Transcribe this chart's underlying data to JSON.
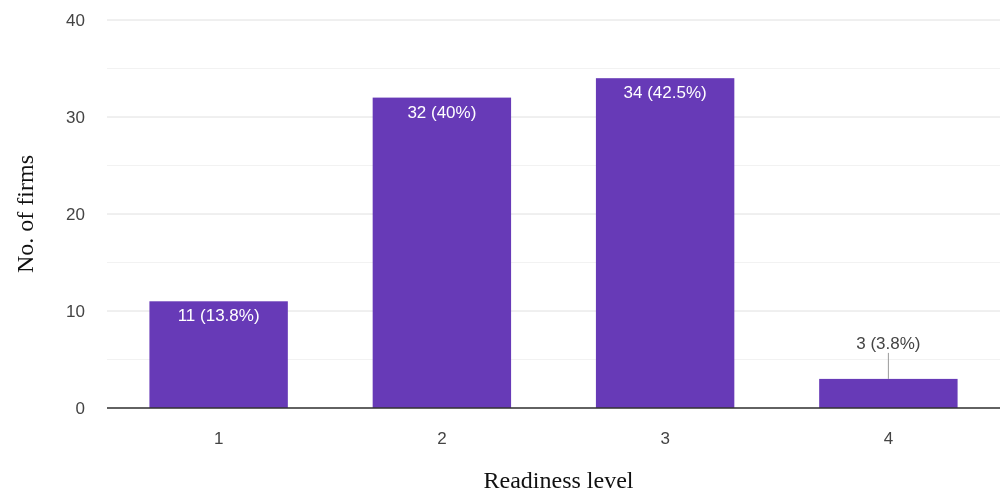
{
  "chart_data": {
    "type": "bar",
    "xlabel": "Readiness level",
    "ylabel": "No. of firms",
    "categories": [
      "1",
      "2",
      "3",
      "4"
    ],
    "values": [
      11,
      32,
      34,
      3
    ],
    "value_labels": [
      "11 (13.8%)",
      "32 (40%)",
      "34 (42.5%)",
      "3 (3.8%)"
    ],
    "color": "#673ab7",
    "ylim": [
      0,
      40
    ],
    "yticks": [
      0,
      {
        "value": 5,
        "label": null
      },
      10,
      {
        "value": 15,
        "label": null
      },
      20,
      {
        "value": 25,
        "label": null
      },
      30,
      {
        "value": 35,
        "label": null
      },
      40
    ],
    "grid": "y"
  }
}
